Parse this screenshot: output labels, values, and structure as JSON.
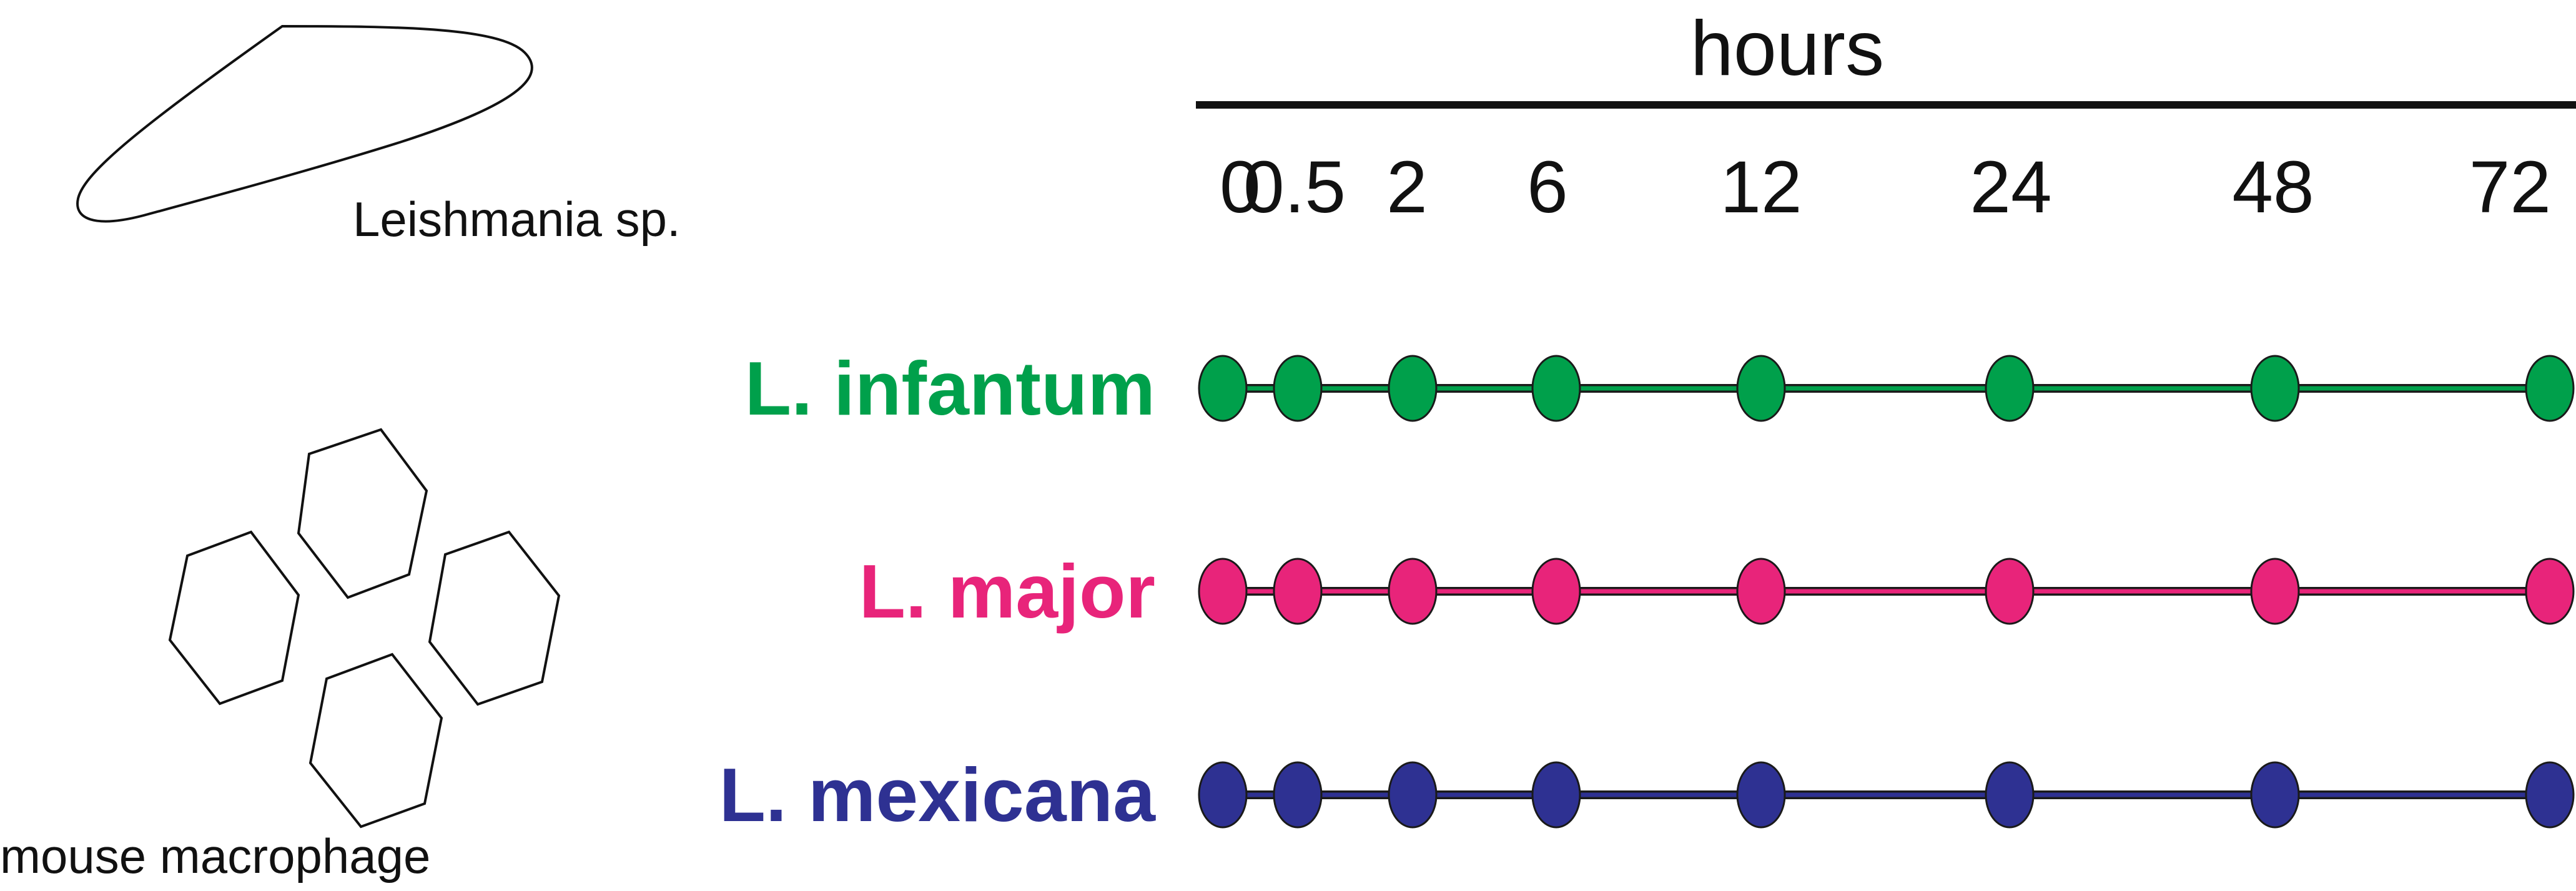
{
  "illustrations": {
    "parasite_label": "Leishmania sp.",
    "parasite_icon": "leishmania-parasite-outline",
    "macrophage_label": "mouse macrophage",
    "macrophage_icon": "hexagon-cell-cluster"
  },
  "timeline": {
    "axis_label": "hours",
    "timepoints": [
      "0",
      "0.5",
      "2",
      "6",
      "12",
      "24",
      "48",
      "72"
    ],
    "series": [
      {
        "name": "L. infantum",
        "color": "#00a04b"
      },
      {
        "name": "L. major",
        "color": "#e8247a"
      },
      {
        "name": "L. mexicana",
        "color": "#2e3192"
      }
    ]
  }
}
